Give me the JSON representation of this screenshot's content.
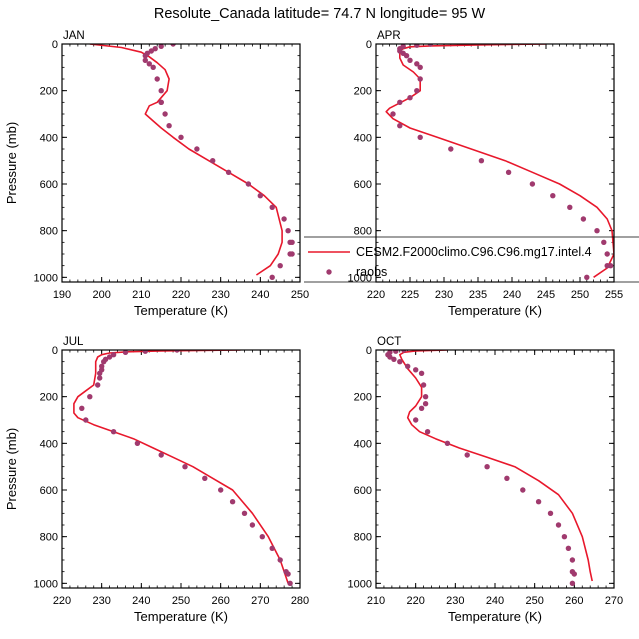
{
  "figure": {
    "title": "Resolute_Canada  latitude= 74.7 N longitude= 95 W"
  },
  "colors": {
    "model": "#e8182c",
    "obs": "#a03a6e",
    "axis": "#000000"
  },
  "chart_data": [
    {
      "type": "line",
      "panel": "JAN",
      "title": "JAN",
      "xlabel": "Temperature (K)",
      "ylabel": "Pressure (mb)",
      "xlim": [
        190,
        250
      ],
      "ylim": [
        1020,
        0
      ],
      "xticks": [
        190,
        200,
        210,
        220,
        230,
        240,
        250
      ],
      "yticks": [
        0,
        200,
        400,
        600,
        800,
        1000
      ],
      "series": [
        {
          "name": "CESM2.F2000climo.C96.C96.mg17.intel.4",
          "kind": "line",
          "x": [
            197,
            205,
            210,
            212,
            214,
            216,
            217,
            216.5,
            214,
            212,
            211,
            213,
            215,
            218,
            222,
            227,
            232,
            237,
            241,
            244,
            245.5,
            245.5,
            244.5,
            242.5,
            239
          ],
          "y": [
            0,
            15,
            35,
            55,
            80,
            110,
            150,
            200,
            250,
            265,
            300,
            330,
            360,
            400,
            450,
            500,
            550,
            600,
            650,
            700,
            800,
            850,
            900,
            950,
            990
          ]
        },
        {
          "name": "raobs",
          "kind": "scatter",
          "x": [
            218,
            215,
            213.5,
            212.5,
            211.5,
            211,
            211,
            212,
            213,
            214,
            215,
            215,
            215,
            216,
            217,
            220,
            224,
            228,
            232,
            237,
            240,
            243,
            246,
            247,
            247.5,
            248,
            248,
            247.5,
            245,
            243
          ],
          "y": [
            0,
            10,
            20,
            30,
            40,
            50,
            70,
            85,
            100,
            150,
            200,
            250,
            250,
            300,
            350,
            400,
            450,
            500,
            550,
            600,
            650,
            700,
            750,
            800,
            850,
            850,
            900,
            900,
            950,
            1000
          ]
        }
      ]
    },
    {
      "type": "line",
      "panel": "APR",
      "title": "APR",
      "xlabel": "Temperature (K)",
      "ylabel": "",
      "xlim": [
        220,
        255
      ],
      "ylim": [
        1020,
        0
      ],
      "xticks": [
        220,
        225,
        230,
        235,
        240,
        245,
        250,
        255
      ],
      "yticks": [
        0,
        200,
        400,
        600,
        800,
        1000
      ],
      "legend": {
        "position": "right",
        "entries": [
          "CESM2.F2000climo.C96.C96.mg17.intel.4",
          "raobs"
        ]
      },
      "series": [
        {
          "name": "CESM2.F2000climo.C96.C96.mg17.intel.4",
          "kind": "line",
          "x": [
            245,
            235,
            228,
            225,
            224,
            223.5,
            223.5,
            224,
            225.5,
            226.5,
            226.5,
            225,
            223,
            222,
            221.5,
            222.5,
            225,
            229,
            234,
            239,
            243,
            247,
            250,
            252.5,
            254,
            254.7,
            255,
            254,
            252
          ],
          "y": [
            0,
            4,
            8,
            12,
            20,
            30,
            60,
            90,
            120,
            150,
            200,
            230,
            260,
            275,
            290,
            320,
            360,
            400,
            450,
            500,
            550,
            600,
            650,
            700,
            750,
            800,
            900,
            960,
            1000
          ]
        },
        {
          "name": "raobs",
          "kind": "scatter",
          "x": [
            228,
            226,
            224,
            223.5,
            223.5,
            224,
            224.5,
            225,
            226,
            226.5,
            226.5,
            226,
            225,
            223.5,
            222.5,
            223.5,
            226.5,
            231,
            235.5,
            239.5,
            243,
            246,
            248.5,
            250.5,
            252.5,
            253.5,
            254,
            254.5,
            254,
            251
          ],
          "y": [
            0,
            5,
            10,
            20,
            30,
            40,
            50,
            70,
            85,
            100,
            150,
            200,
            230,
            250,
            300,
            350,
            400,
            450,
            500,
            550,
            600,
            650,
            700,
            750,
            800,
            850,
            900,
            950,
            950,
            1000
          ]
        }
      ]
    },
    {
      "type": "line",
      "panel": "JUL",
      "title": "JUL",
      "xlabel": "Temperature (K)",
      "ylabel": "Pressure (mb)",
      "xlim": [
        220,
        280
      ],
      "ylim": [
        1020,
        0
      ],
      "xticks": [
        220,
        230,
        240,
        250,
        260,
        270,
        280
      ],
      "yticks": [
        0,
        200,
        400,
        600,
        800,
        1000
      ],
      "series": [
        {
          "name": "CESM2.F2000climo.C96.C96.mg17.intel.4",
          "kind": "line",
          "x": [
            265,
            245,
            236,
            232,
            230,
            229,
            228.5,
            228.5,
            228,
            226,
            224,
            223,
            223,
            224,
            228,
            233,
            238,
            243,
            248,
            253,
            258,
            263,
            268,
            272,
            275,
            277
          ],
          "y": [
            0,
            4,
            8,
            13,
            20,
            30,
            50,
            100,
            150,
            175,
            200,
            230,
            270,
            290,
            320,
            350,
            380,
            420,
            460,
            500,
            550,
            600,
            700,
            800,
            900,
            1000
          ]
        },
        {
          "name": "raobs",
          "kind": "scatter",
          "x": [
            249,
            241,
            236,
            233,
            232,
            231,
            230.5,
            230,
            230,
            229.5,
            229.5,
            229,
            227,
            225,
            226,
            233,
            239,
            245,
            251,
            256,
            260,
            263,
            266,
            268,
            270.5,
            273,
            275,
            276.5,
            277,
            277.5
          ],
          "y": [
            0,
            5,
            10,
            20,
            30,
            40,
            50,
            70,
            85,
            100,
            120,
            150,
            200,
            250,
            300,
            350,
            400,
            450,
            500,
            550,
            600,
            650,
            700,
            750,
            800,
            850,
            900,
            950,
            960,
            1000
          ]
        }
      ]
    },
    {
      "type": "line",
      "panel": "OCT",
      "title": "OCT",
      "xlabel": "Temperature (K)",
      "ylabel": "",
      "xlim": [
        210,
        270
      ],
      "ylim": [
        1020,
        0
      ],
      "xticks": [
        210,
        220,
        230,
        240,
        250,
        260,
        270
      ],
      "yticks": [
        0,
        200,
        400,
        600,
        800,
        1000
      ],
      "series": [
        {
          "name": "CESM2.F2000climo.C96.C96.mg17.intel.4",
          "kind": "line",
          "x": [
            228,
            220,
            217,
            216,
            216.5,
            218,
            220,
            221.5,
            221.5,
            220,
            218.5,
            218,
            219,
            221,
            225,
            231,
            238,
            245,
            251,
            256,
            259.5,
            262,
            263.5,
            264,
            264.5
          ],
          "y": [
            0,
            4,
            10,
            20,
            40,
            80,
            120,
            160,
            200,
            240,
            265,
            290,
            320,
            350,
            380,
            420,
            460,
            500,
            560,
            620,
            700,
            800,
            900,
            950,
            990
          ]
        },
        {
          "name": "raobs",
          "kind": "scatter",
          "x": [
            217,
            215,
            213.5,
            213,
            213.5,
            214.5,
            216,
            218,
            220,
            221.5,
            222,
            222.5,
            222.5,
            221.5,
            220,
            223,
            228,
            233,
            238,
            243,
            247,
            251,
            254,
            256,
            257.5,
            258.5,
            259.5,
            259.5,
            260,
            259.5
          ],
          "y": [
            0,
            5,
            10,
            20,
            30,
            40,
            50,
            70,
            85,
            100,
            150,
            200,
            230,
            250,
            300,
            350,
            400,
            450,
            500,
            550,
            600,
            650,
            700,
            750,
            800,
            850,
            900,
            950,
            960,
            1000
          ]
        }
      ]
    }
  ]
}
